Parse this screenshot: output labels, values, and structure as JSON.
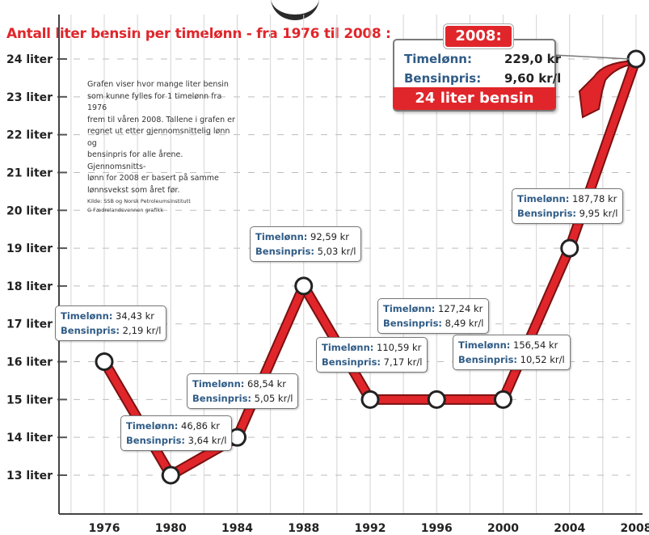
{
  "chart_title": "Antall liter bensin per timelønn - fra 1976 til 2008 :",
  "note": {
    "lines": [
      "Grafen viser hvor mange liter bensin",
      "som kunne fylles for 1 timelønn fra 1976",
      "frem til våren 2008. Tallene i grafen er",
      "regnet ut etter gjennomsnittelig lønn og",
      "bensinpris for alle årene. Gjennomsnitts-",
      "lønn for 2008 er basert på samme",
      "lønnsvekst som året før."
    ],
    "source_lines": [
      "Kilde: SSB og Norsk Petroleumsinstitutt",
      "G Fædrelandsvennen grafikk"
    ]
  },
  "labels": {
    "wage": "Timelønn:",
    "price": "Bensinpris:"
  },
  "callouts": [
    {
      "wage": "34,43 kr",
      "price": "2,19 kr/l"
    },
    {
      "wage": "46,86 kr",
      "price": "3,64 kr/l"
    },
    {
      "wage": "68,54 kr",
      "price": "5,05 kr/l"
    },
    {
      "wage": "92,59 kr",
      "price": "5,03 kr/l"
    },
    {
      "wage": "110,59 kr",
      "price": "7,17 kr/l"
    },
    {
      "wage": "127,24 kr",
      "price": "8,49 kr/l"
    },
    {
      "wage": "156,54 kr",
      "price": "10,52 kr/l"
    },
    {
      "wage": "187,78 kr",
      "price": "9,95 kr/l"
    }
  ],
  "highlight": {
    "year": "2008:",
    "wage_label": "Timelønn:",
    "wage": "229,0 kr",
    "price_label": "Bensinpris:",
    "price": "9,60 kr/l",
    "result": "24 liter bensin"
  },
  "colors": {
    "line": "#e0262b",
    "line_dark": "#7a1010",
    "title": "#e0262b",
    "label_blue": "#2f5b86",
    "grid": "#d4d4d4"
  },
  "chart_data": {
    "type": "line",
    "title": "Antall liter bensin per timelønn - fra 1976 til 2008 :",
    "x": [
      1976,
      1980,
      1984,
      1988,
      1992,
      1996,
      2000,
      2004,
      2008
    ],
    "series": [
      {
        "values": [
          16,
          13,
          14,
          18,
          15,
          15,
          15,
          19,
          24
        ]
      }
    ],
    "xlim": [
      1973,
      2008.5
    ],
    "ylim": [
      12.2,
      24.2
    ],
    "xticks": [
      "1976",
      "1980",
      "1984",
      "1988",
      "1992",
      "1996",
      "2000",
      "2004",
      "2008"
    ],
    "yticks": [
      "13 liter",
      "14 liter",
      "15 liter",
      "16 liter",
      "17 liter",
      "18 liter",
      "19 liter",
      "20 liter",
      "21 liter",
      "22 liter",
      "23 liter",
      "24 liter"
    ],
    "grid": true
  }
}
